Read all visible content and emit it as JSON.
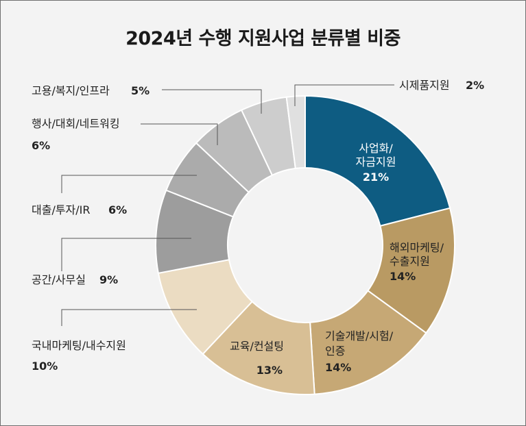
{
  "title": "2024년 수행 지원사업 분류별 비중",
  "chart_data": {
    "type": "pie",
    "donut": true,
    "title": "2024년 수행 지원사업 분류별 비중",
    "unit": "%",
    "slices": [
      {
        "name": "사업화/자금지원",
        "label_lines": [
          "사업화/",
          "자금지원"
        ],
        "value": 21,
        "value_label": "21%",
        "color": "#0e5c82",
        "text_color": "#ffffff",
        "label_mode": "inside"
      },
      {
        "name": "해외마케팅/수출지원",
        "label_lines": [
          "해외마케팅/",
          "수출지원"
        ],
        "value": 14,
        "value_label": "14%",
        "color": "#b99a63",
        "text_color": "#222222",
        "label_mode": "inside"
      },
      {
        "name": "기술개발/시험/인증",
        "label_lines": [
          "기술개발/시험/",
          "인증"
        ],
        "value": 14,
        "value_label": "14%",
        "color": "#c6a875",
        "text_color": "#222222",
        "label_mode": "inside"
      },
      {
        "name": "교육/컨설팅",
        "label_lines": [
          "교육/컨설팅"
        ],
        "value": 13,
        "value_label": "13%",
        "color": "#d8bf95",
        "text_color": "#222222",
        "label_mode": "inside"
      },
      {
        "name": "국내마케팅/내수지원",
        "label_lines": [
          "국내마케팅/내수지원"
        ],
        "value": 10,
        "value_label": "10%",
        "color": "#ebdcc2",
        "text_color": "#222222",
        "label_mode": "outside"
      },
      {
        "name": "공간/사무실",
        "label_lines": [
          "공간/사무실"
        ],
        "value": 9,
        "value_label": "9%",
        "color": "#9d9d9d",
        "text_color": "#222222",
        "label_mode": "outside"
      },
      {
        "name": "대출/투자/IR",
        "label_lines": [
          "대출/투자/IR"
        ],
        "value": 6,
        "value_label": "6%",
        "color": "#ababab",
        "text_color": "#222222",
        "label_mode": "outside"
      },
      {
        "name": "행사/대회/네트워킹",
        "label_lines": [
          "행사/대회/네트워킹"
        ],
        "value": 6,
        "value_label": "6%",
        "color": "#bbbbbb",
        "text_color": "#222222",
        "label_mode": "outside"
      },
      {
        "name": "고용/복지/인프라",
        "label_lines": [
          "고용/복지/인프라"
        ],
        "value": 5,
        "value_label": "5%",
        "color": "#cdcdcd",
        "text_color": "#222222",
        "label_mode": "outside"
      },
      {
        "name": "시제품지원",
        "label_lines": [
          "시제품지원"
        ],
        "value": 2,
        "value_label": "2%",
        "color": "#e0e0e0",
        "text_color": "#222222",
        "label_mode": "outside"
      }
    ],
    "legend": "none"
  }
}
